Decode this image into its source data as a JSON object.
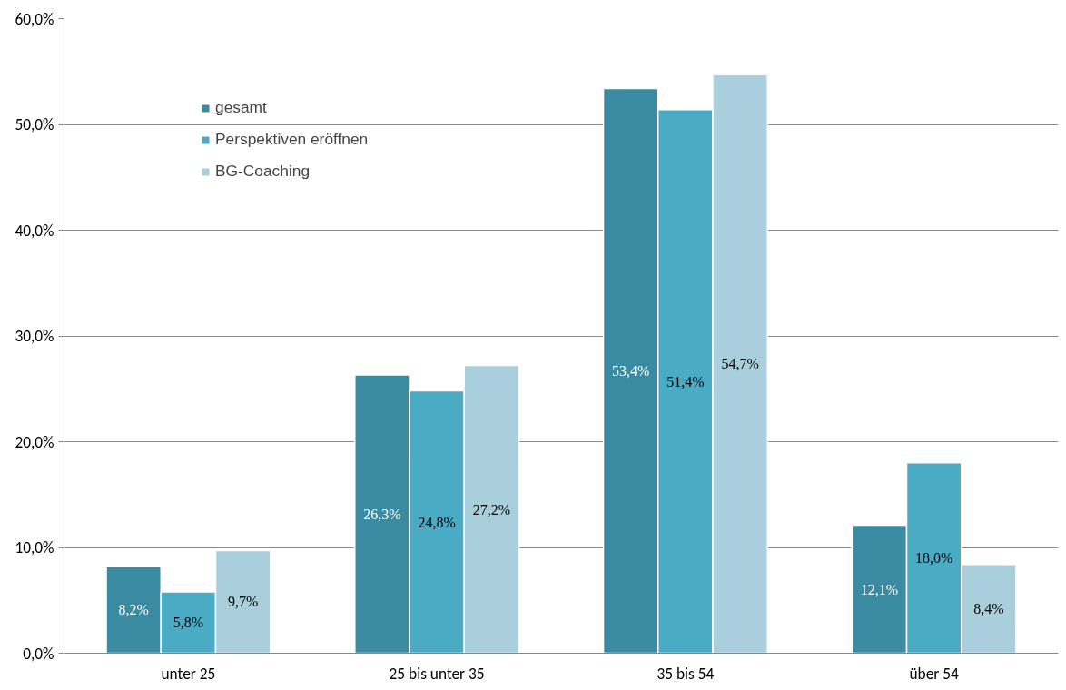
{
  "chart_data": {
    "type": "bar",
    "categories": [
      "unter 25",
      "25 bis unter 35",
      "35 bis 54",
      "über 54"
    ],
    "series": [
      {
        "name": "gesamt",
        "color": "#3a8ba2",
        "values": [
          8.2,
          26.3,
          53.4,
          12.1
        ],
        "value_labels": [
          "8,2%",
          "26,3%",
          "53,4%",
          "12,1%"
        ]
      },
      {
        "name": "Perspektiven eröffnen",
        "color": "#4aabc4",
        "values": [
          5.8,
          24.8,
          51.4,
          18.0
        ],
        "value_labels": [
          "5,8%",
          "24,8%",
          "51,4%",
          "18,0%"
        ]
      },
      {
        "name": "BG-Coaching",
        "color": "#a9cfdc",
        "values": [
          9.7,
          27.2,
          54.7,
          8.4
        ],
        "value_labels": [
          "9,7%",
          "27,2%",
          "54,7%",
          "8,4%"
        ]
      }
    ],
    "ylim": [
      0,
      60
    ],
    "yticks": [
      {
        "value": 0,
        "label": "0,0%"
      },
      {
        "value": 10,
        "label": "10,0%"
      },
      {
        "value": 20,
        "label": "20,0%"
      },
      {
        "value": 30,
        "label": "30,0%"
      },
      {
        "value": 40,
        "label": "40,0%"
      },
      {
        "value": 50,
        "label": "50,0%"
      },
      {
        "value": 60,
        "label": "60,0%"
      }
    ],
    "grid": "y",
    "legend": "top left"
  }
}
